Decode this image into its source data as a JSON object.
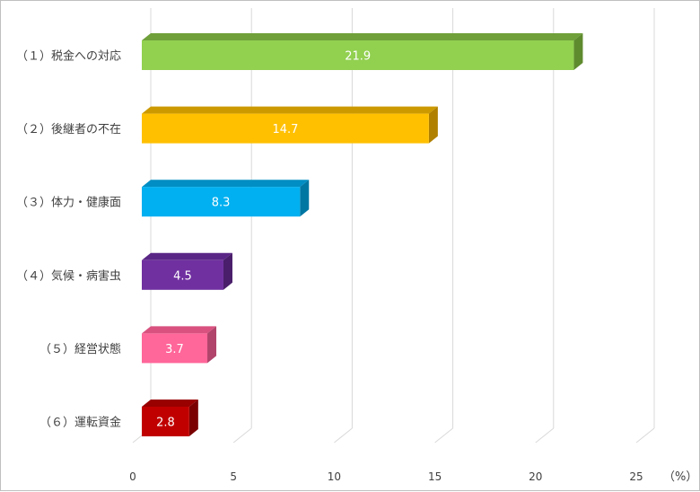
{
  "chart_data": {
    "type": "bar",
    "orientation": "horizontal",
    "style": "3d",
    "title": "",
    "xlabel": "",
    "ylabel": "",
    "unit": "（%）",
    "xlim": [
      0,
      25
    ],
    "x_ticks": [
      "0",
      "5",
      "10",
      "15",
      "20",
      "25"
    ],
    "grid": true,
    "legend": "none",
    "categories": [
      "（１）税金への対応",
      "（２）後継者の不在",
      "（３）体力・健康面",
      "（４）気候・病害虫",
      "（５）経営状態",
      "（６）運転資金"
    ],
    "values": [
      21.9,
      14.7,
      8.3,
      4.5,
      3.7,
      2.8
    ],
    "data_labels": [
      "21.9",
      "14.7",
      "8.3",
      "4.5",
      "3.7",
      "2.8"
    ],
    "colors": [
      "#92d050",
      "#ffc000",
      "#00b0f0",
      "#7030a0",
      "#ff6699",
      "#c00000"
    ],
    "side_colors": [
      "#5f8b2f",
      "#b08000",
      "#0076a3",
      "#4a1e6b",
      "#b0446a",
      "#7a0000"
    ],
    "top_colors": [
      "#6fa03a",
      "#cc9a00",
      "#008ec4",
      "#5a2686",
      "#d9527f",
      "#990000"
    ]
  }
}
